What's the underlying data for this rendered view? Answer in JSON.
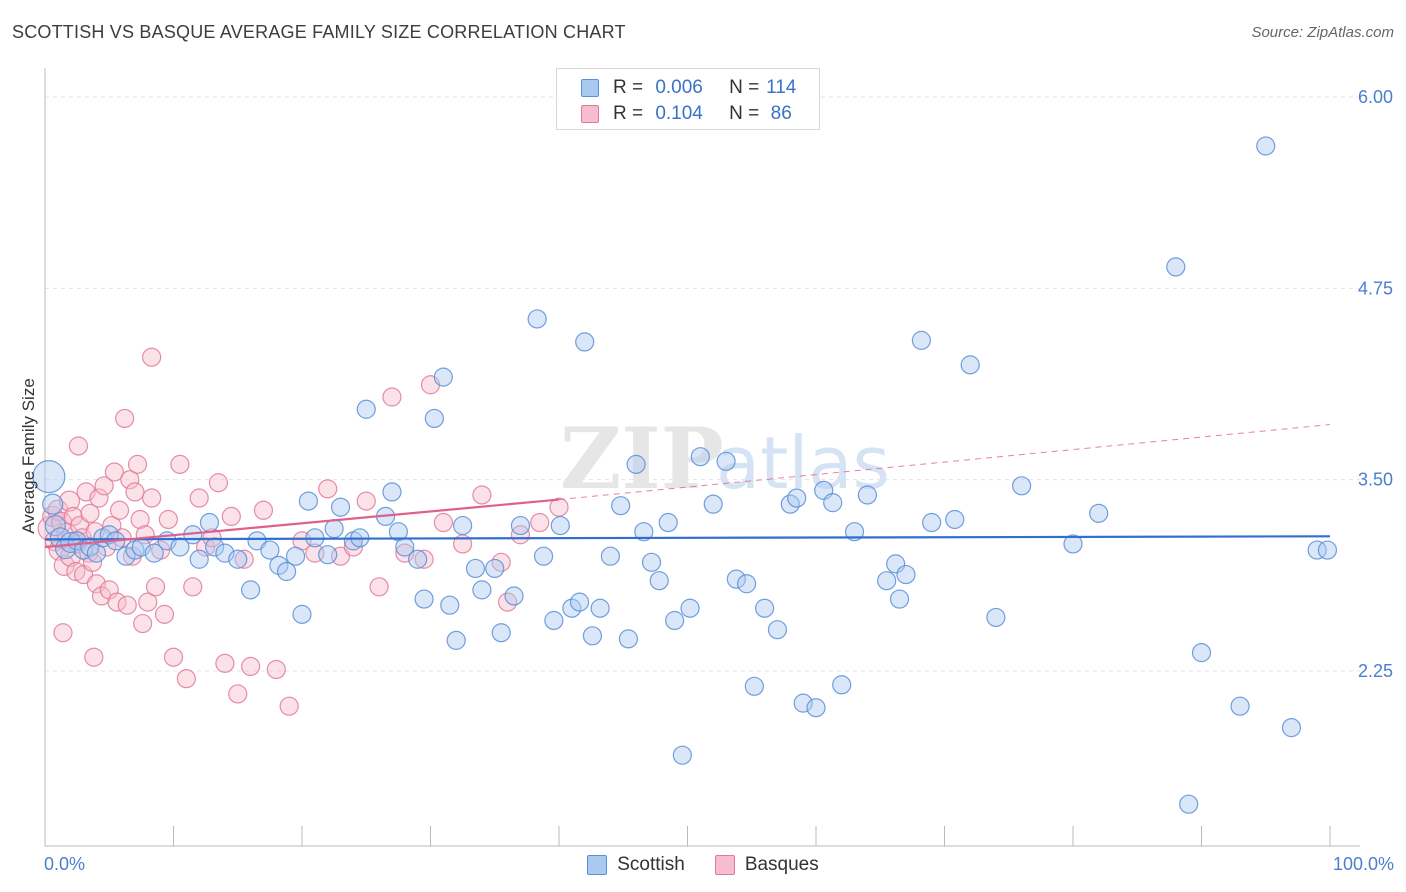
{
  "header": {
    "title": "SCOTTISH VS BASQUE AVERAGE FAMILY SIZE CORRELATION CHART",
    "source": "Source: ZipAtlas.com"
  },
  "watermark": {
    "zip": "ZIP",
    "atlas": "atlas"
  },
  "legend_top": {
    "rows": [
      {
        "r_label": "R =",
        "r_value": "0.006",
        "n_label": "N =",
        "n_value": "114"
      },
      {
        "r_label": "R =",
        "r_value": "0.104",
        "n_label": "N =",
        "n_value": "86"
      }
    ]
  },
  "colors": {
    "scottish_fill": "#aac9f1",
    "scottish_stroke": "#5b8ed6",
    "scottish_line": "#2f6fcf",
    "basques_fill": "#f7bccd",
    "basques_stroke": "#e07a9b",
    "basques_line": "#e0608d",
    "tick_label": "#4a7fcf",
    "grid": "#e3e3e3"
  },
  "chart_data": {
    "type": "scatter",
    "title": "SCOTTISH VS BASQUE AVERAGE FAMILY SIZE CORRELATION CHART",
    "xlabel": "",
    "ylabel": "Average Family Size",
    "xlim": [
      0,
      100
    ],
    "ylim": [
      1.25,
      6.1
    ],
    "x_tick_labels": [
      "0.0%",
      "100.0%"
    ],
    "y_ticks": [
      2.25,
      3.5,
      4.75,
      6.0
    ],
    "y_tick_labels": [
      "2.25",
      "3.50",
      "4.75",
      "6.00"
    ],
    "grid": true,
    "legend_position": "top-center",
    "series": [
      {
        "name": "Scottish",
        "R": 0.006,
        "N": 114,
        "trend": {
          "x": [
            0,
            100
          ],
          "y": [
            3.11,
            3.13
          ]
        },
        "points": [
          [
            0.3,
            3.52,
            16
          ],
          [
            0.6,
            3.34,
            10
          ],
          [
            0.8,
            3.2,
            10
          ],
          [
            1.2,
            3.12,
            10
          ],
          [
            1.6,
            3.05,
            10
          ],
          [
            2.0,
            3.09,
            10
          ],
          [
            2.5,
            3.1,
            9
          ],
          [
            3.0,
            3.04,
            9
          ],
          [
            3.5,
            3.06,
            9
          ],
          [
            4.0,
            3.02,
            9
          ],
          [
            4.5,
            3.12,
            9
          ],
          [
            5.0,
            3.14,
            9
          ],
          [
            5.5,
            3.1,
            9
          ],
          [
            6.3,
            3.0,
            9
          ],
          [
            7.0,
            3.04,
            9
          ],
          [
            7.5,
            3.06,
            9
          ],
          [
            8.5,
            3.02,
            9
          ],
          [
            9.5,
            3.1,
            9
          ],
          [
            10.5,
            3.06,
            9
          ],
          [
            11.5,
            3.14,
            9
          ],
          [
            12.0,
            2.98,
            9
          ],
          [
            12.8,
            3.22,
            9
          ],
          [
            13.2,
            3.06,
            9
          ],
          [
            14.0,
            3.02,
            9
          ],
          [
            15.0,
            2.98,
            9
          ],
          [
            16.0,
            2.78,
            9
          ],
          [
            16.5,
            3.1,
            9
          ],
          [
            17.5,
            3.04,
            9
          ],
          [
            18.2,
            2.94,
            9
          ],
          [
            18.8,
            2.9,
            9
          ],
          [
            19.5,
            3.0,
            9
          ],
          [
            20.0,
            2.62,
            9
          ],
          [
            20.5,
            3.36,
            9
          ],
          [
            21.0,
            3.12,
            9
          ],
          [
            22.0,
            3.01,
            9
          ],
          [
            22.5,
            3.18,
            9
          ],
          [
            23.0,
            3.32,
            9
          ],
          [
            24.0,
            3.1,
            9
          ],
          [
            24.5,
            3.12,
            9
          ],
          [
            25.0,
            3.96,
            9
          ],
          [
            26.5,
            3.26,
            9
          ],
          [
            27.0,
            3.42,
            9
          ],
          [
            27.5,
            3.16,
            9
          ],
          [
            28.0,
            3.06,
            9
          ],
          [
            29.0,
            2.98,
            9
          ],
          [
            29.5,
            2.72,
            9
          ],
          [
            30.3,
            3.9,
            9
          ],
          [
            31.0,
            4.17,
            9
          ],
          [
            31.5,
            2.68,
            9
          ],
          [
            32.0,
            2.45,
            9
          ],
          [
            32.5,
            3.2,
            9
          ],
          [
            33.5,
            2.92,
            9
          ],
          [
            34.0,
            2.78,
            9
          ],
          [
            35.0,
            2.92,
            9
          ],
          [
            35.5,
            2.5,
            9
          ],
          [
            36.5,
            2.74,
            9
          ],
          [
            37.0,
            3.2,
            9
          ],
          [
            38.3,
            4.55,
            9
          ],
          [
            38.8,
            3.0,
            9
          ],
          [
            39.6,
            2.58,
            9
          ],
          [
            40.1,
            3.2,
            9
          ],
          [
            41.0,
            2.66,
            9
          ],
          [
            41.6,
            2.7,
            9
          ],
          [
            42.0,
            4.4,
            9
          ],
          [
            42.6,
            2.48,
            9
          ],
          [
            43.2,
            2.66,
            9
          ],
          [
            44.0,
            3.0,
            9
          ],
          [
            44.8,
            3.33,
            9
          ],
          [
            45.4,
            2.46,
            9
          ],
          [
            46.0,
            3.6,
            9
          ],
          [
            46.6,
            3.16,
            9
          ],
          [
            47.2,
            2.96,
            9
          ],
          [
            47.8,
            2.84,
            9
          ],
          [
            48.5,
            3.22,
            9
          ],
          [
            49.0,
            2.58,
            9
          ],
          [
            49.6,
            1.7,
            9
          ],
          [
            50.2,
            2.66,
            9
          ],
          [
            51.0,
            3.65,
            9
          ],
          [
            52.0,
            3.34,
            9
          ],
          [
            53.0,
            3.62,
            9
          ],
          [
            53.8,
            2.85,
            9
          ],
          [
            54.6,
            2.82,
            9
          ],
          [
            55.2,
            2.15,
            9
          ],
          [
            56.0,
            2.66,
            9
          ],
          [
            57.0,
            2.52,
            9
          ],
          [
            58.0,
            3.34,
            9
          ],
          [
            58.5,
            3.38,
            9
          ],
          [
            59.0,
            2.04,
            9
          ],
          [
            60.0,
            2.01,
            9
          ],
          [
            60.6,
            3.43,
            9
          ],
          [
            61.3,
            3.35,
            9
          ],
          [
            62.0,
            2.16,
            9
          ],
          [
            63.0,
            3.16,
            9
          ],
          [
            64.0,
            3.4,
            9
          ],
          [
            65.5,
            2.84,
            9
          ],
          [
            66.2,
            2.95,
            9
          ],
          [
            66.5,
            2.72,
            9
          ],
          [
            67.0,
            2.88,
            9
          ],
          [
            68.2,
            4.41,
            9
          ],
          [
            69.0,
            3.22,
            9
          ],
          [
            70.8,
            3.24,
            9
          ],
          [
            72.0,
            4.25,
            9
          ],
          [
            74.0,
            2.6,
            9
          ],
          [
            76.0,
            3.46,
            9
          ],
          [
            80.0,
            3.08,
            9
          ],
          [
            82.0,
            3.28,
            9
          ],
          [
            88.0,
            4.89,
            9
          ],
          [
            89.0,
            1.38,
            9
          ],
          [
            90.0,
            2.37,
            9
          ],
          [
            93.0,
            2.02,
            9
          ],
          [
            95.0,
            5.68,
            9
          ],
          [
            97.0,
            1.88,
            9
          ],
          [
            99.0,
            3.04,
            9
          ],
          [
            99.8,
            3.04,
            9
          ]
        ]
      },
      {
        "name": "Basques",
        "R": 0.104,
        "N": 86,
        "trend": {
          "x": [
            0,
            40
          ],
          "y": [
            3.06,
            3.37
          ]
        },
        "trend_dashed": {
          "x": [
            40,
            100
          ],
          "y": [
            3.37,
            3.86
          ]
        },
        "points": [
          [
            0.4,
            3.18,
            12
          ],
          [
            0.6,
            3.26,
            10
          ],
          [
            0.8,
            3.1,
            10
          ],
          [
            1.0,
            3.3,
            10
          ],
          [
            1.1,
            3.04,
            10
          ],
          [
            1.3,
            3.22,
            10
          ],
          [
            1.5,
            2.94,
            10
          ],
          [
            1.7,
            3.15,
            10
          ],
          [
            1.9,
            3.36,
            10
          ],
          [
            2.0,
            3.0,
            10
          ],
          [
            2.2,
            3.26,
            9
          ],
          [
            2.4,
            2.9,
            9
          ],
          [
            2.5,
            3.08,
            9
          ],
          [
            2.7,
            3.2,
            9
          ],
          [
            2.9,
            3.12,
            9
          ],
          [
            3.0,
            2.88,
            9
          ],
          [
            3.2,
            3.42,
            9
          ],
          [
            3.4,
            3.02,
            9
          ],
          [
            3.5,
            3.28,
            9
          ],
          [
            3.7,
            2.96,
            9
          ],
          [
            3.9,
            3.16,
            9
          ],
          [
            4.0,
            2.82,
            9
          ],
          [
            4.2,
            3.38,
            9
          ],
          [
            4.4,
            2.74,
            9
          ],
          [
            4.6,
            3.46,
            9
          ],
          [
            4.8,
            3.06,
            9
          ],
          [
            5.0,
            2.78,
            9
          ],
          [
            5.2,
            3.2,
            9
          ],
          [
            5.4,
            3.55,
            9
          ],
          [
            5.6,
            2.7,
            9
          ],
          [
            5.8,
            3.3,
            9
          ],
          [
            6.0,
            3.12,
            9
          ],
          [
            6.2,
            3.9,
            9
          ],
          [
            6.4,
            2.68,
            9
          ],
          [
            6.6,
            3.5,
            9
          ],
          [
            6.8,
            3.0,
            9
          ],
          [
            7.0,
            3.42,
            9
          ],
          [
            7.2,
            3.6,
            9
          ],
          [
            7.4,
            3.24,
            9
          ],
          [
            7.6,
            2.56,
            9
          ],
          [
            7.8,
            3.14,
            9
          ],
          [
            8.0,
            2.7,
            9
          ],
          [
            8.3,
            3.38,
            9
          ],
          [
            8.6,
            2.8,
            9
          ],
          [
            9.0,
            3.04,
            9
          ],
          [
            9.3,
            2.62,
            9
          ],
          [
            9.6,
            3.24,
            9
          ],
          [
            10.0,
            2.34,
            9
          ],
          [
            10.5,
            3.6,
            9
          ],
          [
            11.0,
            2.2,
            9
          ],
          [
            11.5,
            2.8,
            9
          ],
          [
            12.0,
            3.38,
            9
          ],
          [
            12.5,
            3.06,
            9
          ],
          [
            13.0,
            3.12,
            9
          ],
          [
            13.5,
            3.48,
            9
          ],
          [
            14.0,
            2.3,
            9
          ],
          [
            14.5,
            3.26,
            9
          ],
          [
            15.0,
            2.1,
            9
          ],
          [
            15.5,
            2.98,
            9
          ],
          [
            16.0,
            2.28,
            9
          ],
          [
            17.0,
            3.3,
            9
          ],
          [
            18.0,
            2.26,
            9
          ],
          [
            19.0,
            2.02,
            9
          ],
          [
            20.0,
            3.1,
            9
          ],
          [
            21.0,
            3.02,
            9
          ],
          [
            22.0,
            3.44,
            9
          ],
          [
            23.0,
            3.0,
            9
          ],
          [
            24.0,
            3.06,
            9
          ],
          [
            25.0,
            3.36,
            9
          ],
          [
            26.0,
            2.8,
            9
          ],
          [
            27.0,
            4.04,
            9
          ],
          [
            28.0,
            3.02,
            9
          ],
          [
            29.5,
            2.98,
            9
          ],
          [
            30.0,
            4.12,
            9
          ],
          [
            31.0,
            3.22,
            9
          ],
          [
            32.5,
            3.08,
            9
          ],
          [
            34.0,
            3.4,
            9
          ],
          [
            35.5,
            2.96,
            9
          ],
          [
            37.0,
            3.14,
            9
          ],
          [
            38.5,
            3.22,
            9
          ],
          [
            40.0,
            3.32,
            9
          ],
          [
            8.3,
            4.3,
            9
          ],
          [
            2.6,
            3.72,
            9
          ],
          [
            1.4,
            2.5,
            9
          ],
          [
            3.8,
            2.34,
            9
          ],
          [
            36.0,
            2.7,
            9
          ]
        ]
      }
    ]
  }
}
